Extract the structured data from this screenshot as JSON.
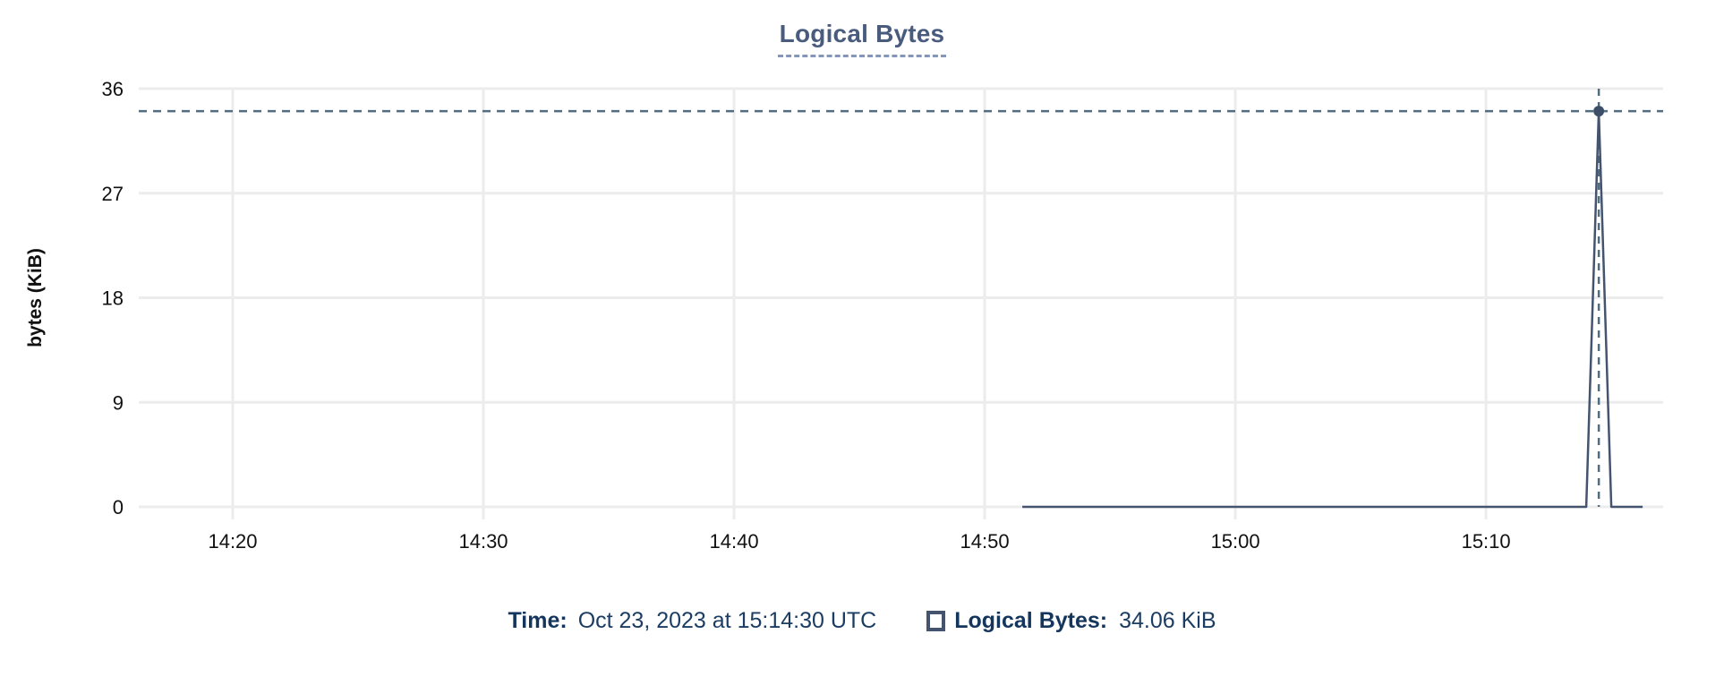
{
  "title": "Logical Bytes",
  "colors": {
    "series": "#44546e",
    "hover_dot": "#3d4e68",
    "crosshair": "#4f6d83",
    "grid": "#ececec",
    "title_text": "#4a5c7e",
    "title_underline": "#8596bb",
    "footer_label": "#14355c",
    "footer_value": "#1c3d63",
    "tick_label": "#111111"
  },
  "chart_data": {
    "type": "line",
    "title": "Logical Bytes",
    "xlabel": "",
    "ylabel": "bytes (KiB)",
    "ylim": [
      0,
      36
    ],
    "y_ticks": [
      0,
      9,
      18,
      27,
      36
    ],
    "x_ticks": [
      "14:20",
      "14:30",
      "14:40",
      "14:50",
      "15:00",
      "15:10"
    ],
    "x_domain": [
      "14:16:15",
      "15:17:04"
    ],
    "grid": true,
    "legend_position": "bottom",
    "series": [
      {
        "name": "Logical Bytes",
        "color": "#44546e",
        "points": [
          [
            "14:51:30",
            0
          ],
          [
            "15:14:00",
            0
          ],
          [
            "15:14:30",
            34.06
          ],
          [
            "15:15:00",
            0
          ],
          [
            "15:16:15",
            0
          ]
        ]
      }
    ],
    "hover_point": {
      "time": "15:14:30",
      "value": 34.06,
      "value_label": "34.06 KiB"
    }
  },
  "footer": {
    "time_label": "Time:",
    "time_value": "Oct 23, 2023 at 15:14:30 UTC",
    "series_label": "Logical Bytes:",
    "series_value": "34.06 KiB"
  }
}
